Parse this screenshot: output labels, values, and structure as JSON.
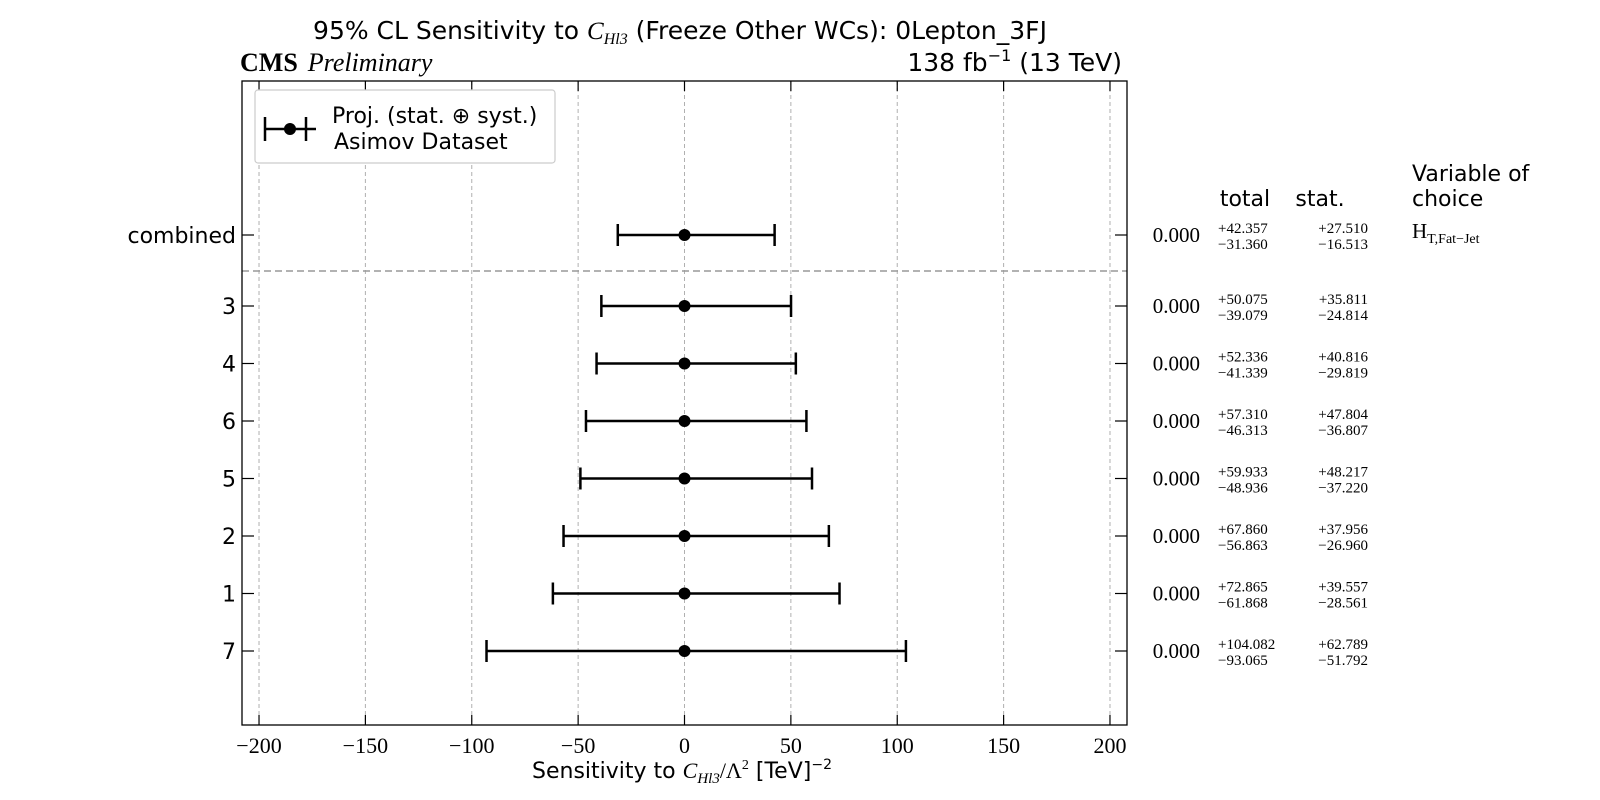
{
  "chart_data": {
    "type": "scatter",
    "title": {
      "prefix": "95% CL Sensitivity to ",
      "var": "C",
      "var_sub": "Hl3",
      "suffix": " (Freeze Other WCs): 0Lepton_3FJ"
    },
    "experiment": "CMS",
    "experiment_status": "Preliminary",
    "lumi": {
      "value": "138 fb",
      "exponent": "−1",
      "energy": " (13 TeV)"
    },
    "xlabel": {
      "prefix": "Sensitivity to ",
      "var": "C",
      "var_sub": "Hl3",
      "mid": "/Λ",
      "pow": "2",
      "unit": " [TeV]",
      "unit_pow": "−2"
    },
    "xlim": [
      -208,
      208
    ],
    "x_ticks": [
      -200,
      -150,
      -100,
      -50,
      0,
      50,
      100,
      150,
      200
    ],
    "x_tick_labels": [
      "−200",
      "−150",
      "−100",
      "−50",
      "0",
      "50",
      "100",
      "150",
      "200"
    ],
    "grid": true,
    "legend": {
      "position": "top-left",
      "line1": "Proj. (stat. ⊕ syst.)",
      "line2": "Asimov Dataset"
    },
    "table_headers": {
      "total": "total",
      "stat": "stat.",
      "choice_line1": "Variable of",
      "choice_line2": "choice"
    },
    "choice_value": {
      "main": "H",
      "sub": "T,Fat−Jet"
    },
    "rows": [
      {
        "label": "combined",
        "central": 0.0,
        "up": 42.357,
        "down": 31.36,
        "stat_up": 27.51,
        "stat_down": 16.513,
        "central_txt": "0.000",
        "up_txt": "+42.357",
        "down_txt": "−31.360",
        "stat_up_txt": "+27.510",
        "stat_down_txt": "−16.513"
      },
      {
        "label": "3",
        "central": 0.0,
        "up": 50.075,
        "down": 39.079,
        "stat_up": 35.811,
        "stat_down": 24.814,
        "central_txt": "0.000",
        "up_txt": "+50.075",
        "down_txt": "−39.079",
        "stat_up_txt": "+35.811",
        "stat_down_txt": "−24.814"
      },
      {
        "label": "4",
        "central": 0.0,
        "up": 52.336,
        "down": 41.339,
        "stat_up": 40.816,
        "stat_down": 29.819,
        "central_txt": "0.000",
        "up_txt": "+52.336",
        "down_txt": "−41.339",
        "stat_up_txt": "+40.816",
        "stat_down_txt": "−29.819"
      },
      {
        "label": "6",
        "central": 0.0,
        "up": 57.31,
        "down": 46.313,
        "stat_up": 47.804,
        "stat_down": 36.807,
        "central_txt": "0.000",
        "up_txt": "+57.310",
        "down_txt": "−46.313",
        "stat_up_txt": "+47.804",
        "stat_down_txt": "−36.807"
      },
      {
        "label": "5",
        "central": 0.0,
        "up": 59.933,
        "down": 48.936,
        "stat_up": 48.217,
        "stat_down": 37.22,
        "central_txt": "0.000",
        "up_txt": "+59.933",
        "down_txt": "−48.936",
        "stat_up_txt": "+48.217",
        "stat_down_txt": "−37.220"
      },
      {
        "label": "2",
        "central": 0.0,
        "up": 67.86,
        "down": 56.863,
        "stat_up": 37.956,
        "stat_down": 26.96,
        "central_txt": "0.000",
        "up_txt": "+67.860",
        "down_txt": "−56.863",
        "stat_up_txt": "+37.956",
        "stat_down_txt": "−26.960"
      },
      {
        "label": "1",
        "central": 0.0,
        "up": 72.865,
        "down": 61.868,
        "stat_up": 39.557,
        "stat_down": 28.561,
        "central_txt": "0.000",
        "up_txt": "+72.865",
        "down_txt": "−61.868",
        "stat_up_txt": "+39.557",
        "stat_down_txt": "−28.561"
      },
      {
        "label": "7",
        "central": 0.0,
        "up": 104.082,
        "down": 93.065,
        "stat_up": 62.789,
        "stat_down": 51.792,
        "central_txt": "0.000",
        "up_txt": "+104.082",
        "down_txt": "−93.065",
        "stat_up_txt": "+62.789",
        "stat_down_txt": "−51.792"
      }
    ],
    "colors": {
      "marker": "#000000",
      "grid": "#b0b0b0",
      "separator": "#999999",
      "frame": "#000000"
    }
  }
}
